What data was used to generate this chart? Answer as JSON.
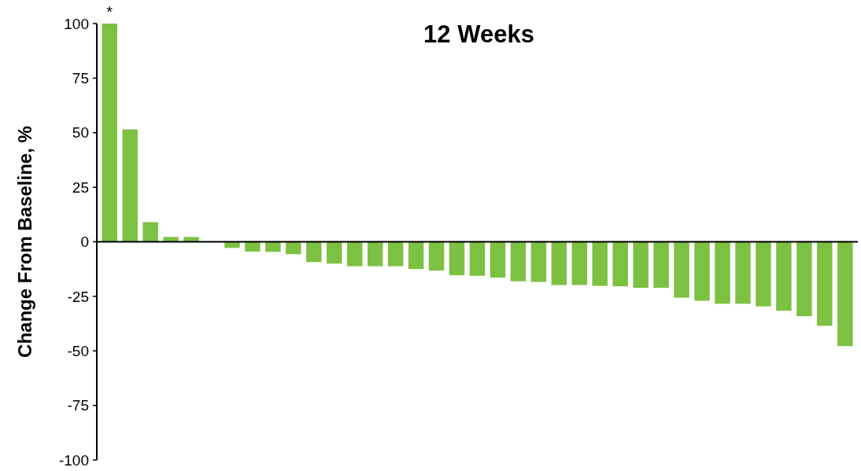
{
  "chart_data": {
    "type": "bar",
    "title": "12 Weeks",
    "ylabel": "Change From Baseline, %",
    "categories": [
      null,
      null,
      null,
      null,
      null,
      null,
      null,
      null,
      null,
      null,
      null,
      null,
      null,
      null,
      null,
      null,
      null,
      null,
      null,
      null,
      null,
      null,
      null,
      null,
      null,
      null,
      null,
      null,
      null,
      null,
      null,
      null,
      null,
      null,
      null,
      null,
      null
    ],
    "values": [
      100,
      51.5,
      9,
      2.2,
      2.2,
      0,
      -2.8,
      -4.5,
      -4.6,
      -5.7,
      -9.3,
      -10,
      -11.2,
      -11.2,
      -11.2,
      -12.5,
      -13.2,
      -15.3,
      -15.6,
      -16.4,
      -18.1,
      -18.4,
      -19.8,
      -19.8,
      -20.2,
      -20.4,
      -21.1,
      -21.1,
      -25.6,
      -27,
      -28.4,
      -28.4,
      -29.6,
      -31.6,
      -34.1,
      -38.5,
      -47.8
    ],
    "color": "#7dc142",
    "ylim": [
      -100,
      100
    ],
    "yticks": [
      -100,
      -75,
      -50,
      -25,
      0,
      25,
      50,
      75,
      100
    ],
    "annotations": [
      {
        "text": "*",
        "y": 100
      }
    ]
  }
}
